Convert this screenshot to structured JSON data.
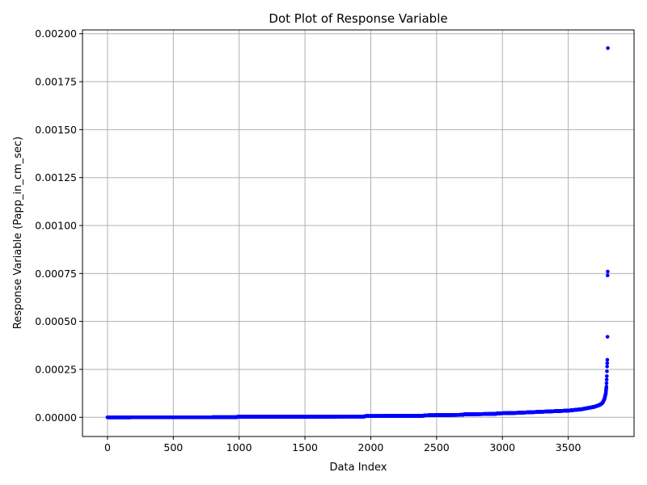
{
  "chart_data": {
    "type": "scatter",
    "title": "Dot Plot of Response Variable",
    "xlabel": "Data Index",
    "ylabel": "Response Variable (Papp_in_cm_sec)",
    "xlim": [
      -190,
      4000
    ],
    "ylim": [
      -0.0001,
      0.00202
    ],
    "x_ticks": [
      0,
      500,
      1000,
      1500,
      2000,
      2500,
      3000,
      3500
    ],
    "x_tick_labels": [
      "0",
      "500",
      "1000",
      "1500",
      "2000",
      "2500",
      "3000",
      "3500"
    ],
    "y_ticks": [
      0,
      0.00025,
      0.0005,
      0.00075,
      0.001,
      0.00125,
      0.0015,
      0.00175,
      0.002
    ],
    "y_tick_labels": [
      "0.00000",
      "0.00025",
      "0.00050",
      "0.00075",
      "0.00100",
      "0.00125",
      "0.00150",
      "0.00175",
      "0.00200"
    ],
    "grid": true,
    "marker_color": "#0000ff",
    "n_points": 3802,
    "curve_knots": [
      [
        0,
        0.0
      ],
      [
        980,
        2e-07
      ],
      [
        990,
        2.8e-06
      ],
      [
        1950,
        4e-06
      ],
      [
        1960,
        6.5e-06
      ],
      [
        2400,
        8e-06
      ],
      [
        2410,
        1.05e-05
      ],
      [
        2700,
        1.3e-05
      ],
      [
        2710,
        1.55e-05
      ],
      [
        2950,
        1.8e-05
      ],
      [
        2960,
        2.05e-05
      ],
      [
        3100,
        2.3e-05
      ],
      [
        3300,
        2.9e-05
      ],
      [
        3500,
        3.5e-05
      ],
      [
        3600,
        4.2e-05
      ],
      [
        3700,
        5.5e-05
      ],
      [
        3740,
        6.5e-05
      ],
      [
        3760,
        7.5e-05
      ],
      [
        3775,
        9.5e-05
      ],
      [
        3785,
        0.000125
      ],
      [
        3790,
        0.00016
      ],
      [
        3793,
        0.000215
      ],
      [
        3795,
        0.000265
      ],
      [
        3797,
        0.0003
      ]
    ],
    "outliers": [
      {
        "x": 3798,
        "y": 0.00042
      },
      {
        "x": 3799,
        "y": 0.00074
      },
      {
        "x": 3800,
        "y": 0.00076
      },
      {
        "x": 3801,
        "y": 0.001925
      }
    ]
  }
}
